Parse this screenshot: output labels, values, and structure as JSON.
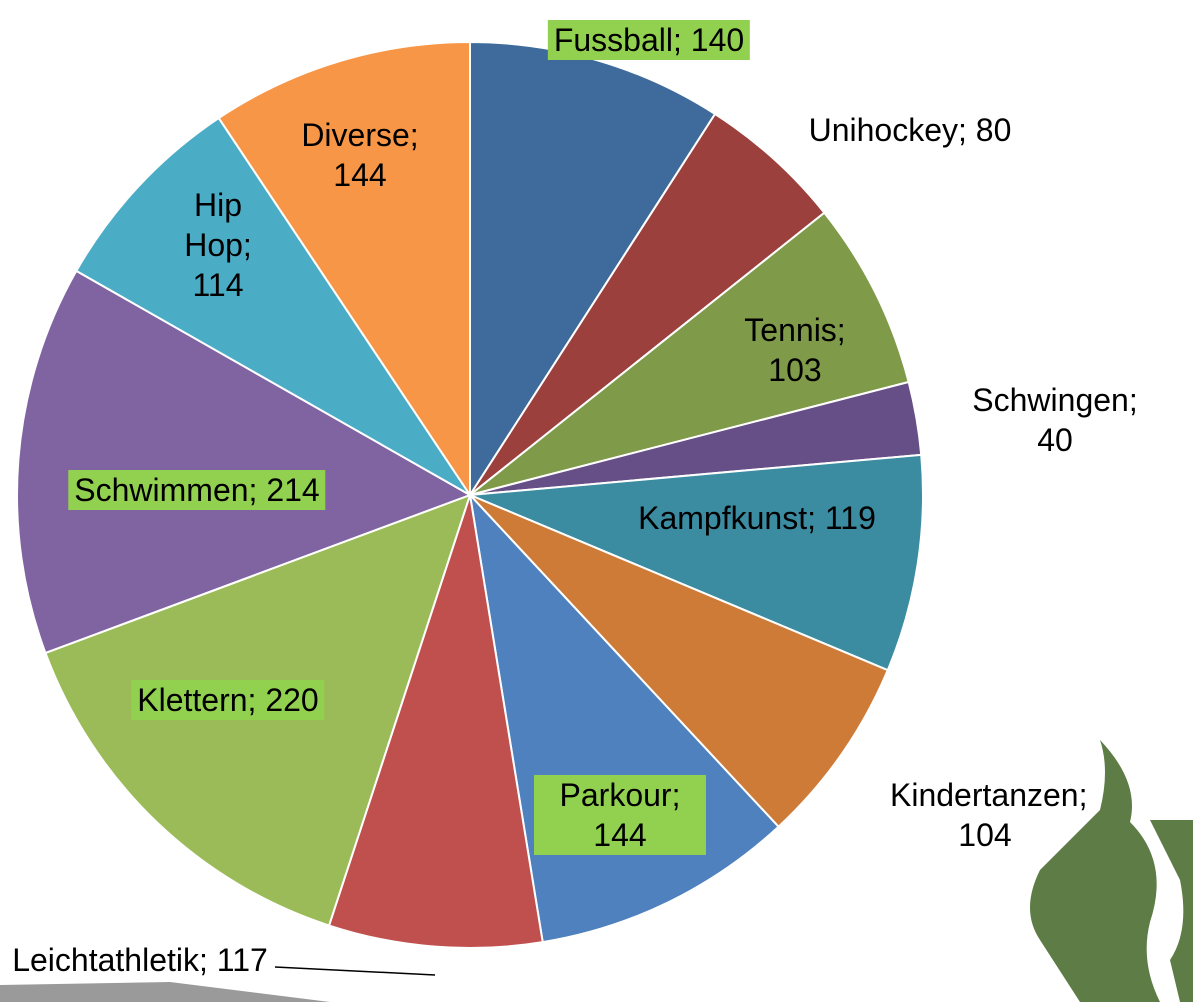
{
  "chart_data": {
    "type": "pie",
    "values": [
      140,
      80,
      103,
      40,
      119,
      104,
      144,
      117,
      220,
      214,
      114,
      144
    ],
    "value_labels": [
      "Fussball; 140",
      "Unihockey; 80",
      "Tennis; 103",
      "Schwingen; 40",
      "Kampfkunst; 119",
      "Kindertanzen; 104",
      "Parkour; 144",
      "Leichtathletik; 117",
      "Klettern; 220",
      "Schwimmen; 214",
      "Hip Hop; 114",
      "Diverse; 144"
    ],
    "colors": [
      "#3f6b9c",
      "#9c403e",
      "#7f9a48",
      "#664f86",
      "#3b8ba1",
      "#cd7b37",
      "#4e81bd",
      "#c0504d",
      "#9bbb59",
      "#8064a2",
      "#4bacc6",
      "#f79646"
    ],
    "label_fill": [
      "#92d050",
      null,
      null,
      null,
      null,
      null,
      "#92d050",
      null,
      "#92d050",
      "#92d050",
      null,
      null
    ]
  }
}
